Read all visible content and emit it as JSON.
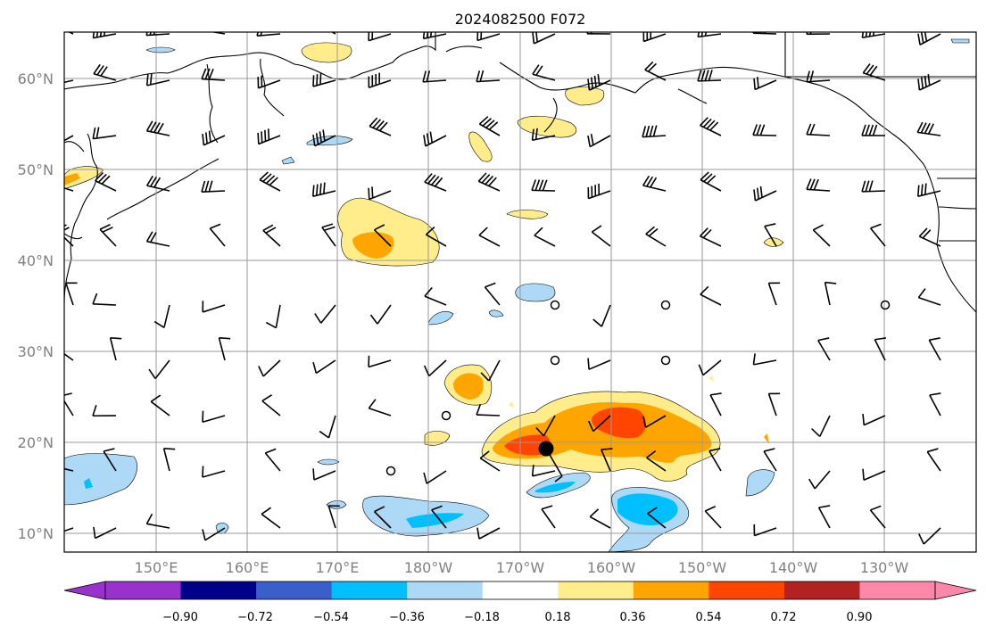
{
  "title": "2024082500 F072",
  "map": {
    "lon_labels": [
      "150°E",
      "160°E",
      "170°E",
      "180°W",
      "170°W",
      "160°W",
      "150°W",
      "140°W",
      "130°W"
    ],
    "lat_labels": [
      "60°N",
      "50°N",
      "40°N",
      "30°N",
      "20°N",
      "10°N"
    ]
  },
  "colorbar": {
    "tick_labels": [
      "−0.90",
      "−0.72",
      "−0.54",
      "−0.36",
      "−0.18",
      "0.18",
      "0.36",
      "0.54",
      "0.72",
      "0.90"
    ],
    "colors": [
      "#9932cc",
      "#00008b",
      "#3a5fcd",
      "#00bfff",
      "#add8f6",
      "#ffffff",
      "#ffec8b",
      "#ffa500",
      "#ff4500",
      "#b22222",
      "#ff88aa"
    ]
  },
  "storm_marker": {
    "lon": -167.5,
    "lat": 19.3
  }
}
